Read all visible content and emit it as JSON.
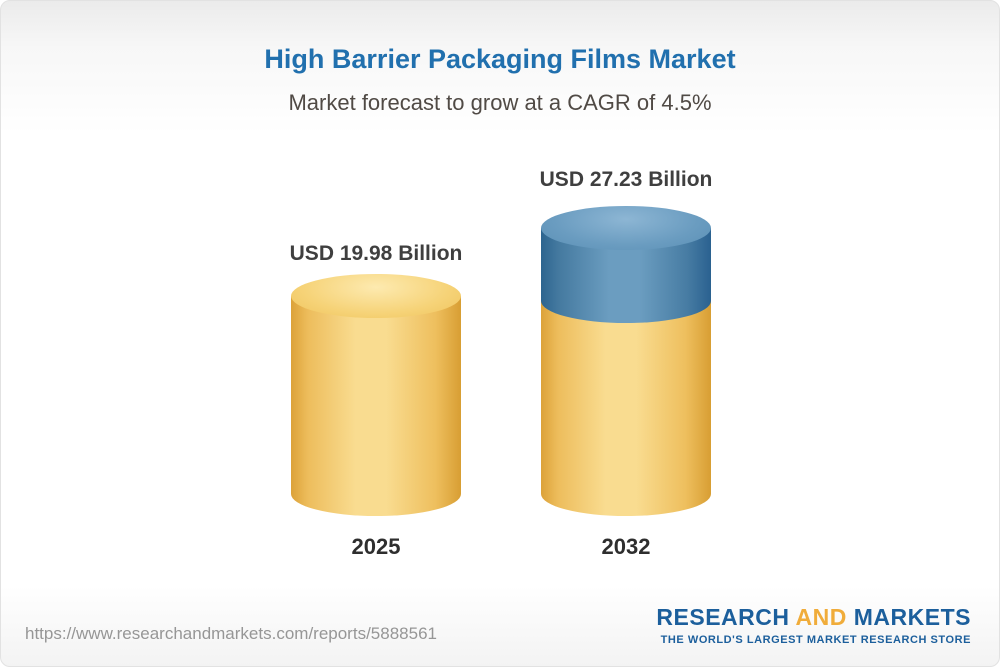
{
  "page": {
    "title": "High Barrier Packaging Films Market",
    "subtitle": "Market forecast to grow at a CAGR of 4.5%"
  },
  "chart_data": {
    "type": "bar",
    "bar_style": "3d-cylinder",
    "categories": [
      "2025",
      "2032"
    ],
    "values": [
      19.98,
      27.23
    ],
    "value_labels": [
      "USD 19.98 Billion",
      "USD 27.23 Billion"
    ],
    "series": [
      {
        "name": "base-value",
        "color": "#f5cd6d",
        "values": [
          19.98,
          19.98
        ]
      },
      {
        "name": "growth-above-base",
        "color": "#4a7ea8",
        "values": [
          0,
          7.25
        ]
      }
    ],
    "title": "High Barrier Packaging Films Market",
    "subtitle": "Market forecast to grow at a CAGR of 4.5%",
    "unit": "USD Billion",
    "cagr": "4.5%",
    "xlabel": "",
    "ylabel": "",
    "ylim": [
      0,
      30
    ],
    "grid": false,
    "legend": "none"
  },
  "footer": {
    "url": "https://www.researchandmarkets.com/reports/5888561",
    "logo": {
      "research": "RESEARCH",
      "and": "AND",
      "markets": "MARKETS",
      "tagline": "THE WORLD'S LARGEST MARKET RESEARCH STORE"
    }
  }
}
